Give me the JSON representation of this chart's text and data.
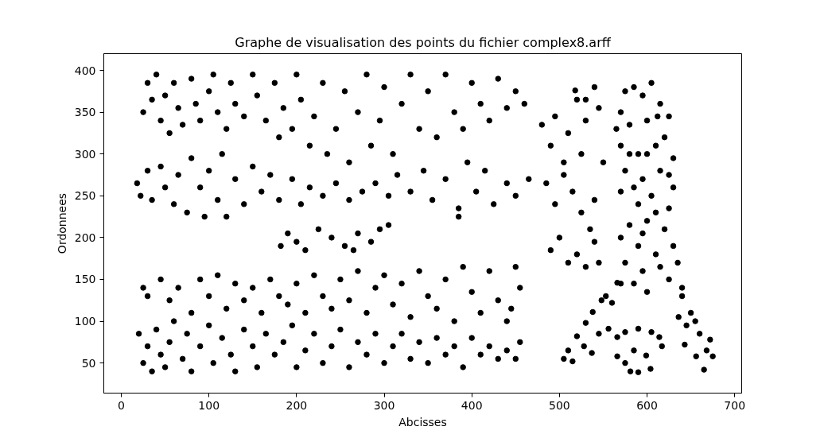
{
  "chart_data": {
    "type": "scatter",
    "title": "Graphe de visualisation des points du fichier complex8.arff",
    "xlabel": "Abcisses",
    "ylabel": "Ordonnees",
    "color": "#000000",
    "marker": "circle",
    "grid": false,
    "xlim": [
      -20,
      708
    ],
    "ylim": [
      14,
      420
    ],
    "xticks": [
      0,
      100,
      200,
      300,
      400,
      500,
      600,
      700
    ],
    "yticks": [
      50,
      100,
      150,
      200,
      250,
      300,
      350,
      400
    ],
    "x": [
      25,
      30,
      35,
      40,
      45,
      50,
      55,
      60,
      65,
      70,
      80,
      85,
      90,
      100,
      105,
      110,
      120,
      125,
      130,
      140,
      150,
      155,
      165,
      175,
      180,
      185,
      195,
      200,
      205,
      215,
      220,
      230,
      235,
      245,
      255,
      260,
      270,
      280,
      285,
      295,
      300,
      310,
      320,
      330,
      340,
      350,
      360,
      370,
      380,
      390,
      400,
      410,
      420,
      430,
      440,
      450,
      460,
      18,
      22,
      30,
      35,
      45,
      50,
      60,
      65,
      75,
      80,
      90,
      95,
      100,
      110,
      115,
      120,
      130,
      140,
      150,
      160,
      170,
      180,
      195,
      205,
      215,
      230,
      245,
      260,
      275,
      290,
      305,
      315,
      330,
      345,
      355,
      370,
      385,
      395,
      405,
      415,
      425,
      440,
      450,
      465,
      385,
      182,
      190,
      200,
      210,
      225,
      240,
      255,
      270,
      285,
      295,
      305,
      265,
      25,
      30,
      45,
      55,
      65,
      80,
      90,
      100,
      110,
      120,
      130,
      140,
      150,
      160,
      170,
      180,
      190,
      200,
      210,
      220,
      230,
      240,
      250,
      260,
      270,
      280,
      290,
      300,
      310,
      320,
      330,
      340,
      350,
      360,
      370,
      380,
      390,
      400,
      410,
      420,
      430,
      440,
      450,
      455,
      445,
      20,
      25,
      30,
      35,
      40,
      45,
      50,
      55,
      60,
      70,
      75,
      80,
      90,
      100,
      105,
      115,
      125,
      130,
      140,
      150,
      155,
      165,
      175,
      185,
      195,
      200,
      210,
      220,
      230,
      240,
      250,
      260,
      270,
      280,
      290,
      300,
      310,
      320,
      330,
      340,
      350,
      360,
      370,
      380,
      390,
      400,
      410,
      420,
      430,
      440,
      450,
      455,
      480,
      490,
      495,
      505,
      510,
      520,
      525,
      530,
      540,
      545,
      485,
      495,
      505,
      515,
      525,
      535,
      540,
      490,
      500,
      510,
      520,
      530,
      540,
      545,
      530,
      550,
      518,
      570,
      575,
      585,
      595,
      605,
      615,
      625,
      580,
      600,
      620,
      570,
      590,
      610,
      630,
      575,
      595,
      615,
      630,
      570,
      590,
      605,
      625,
      580,
      600,
      620,
      570,
      590,
      610,
      630,
      575,
      595,
      615,
      625,
      585,
      600,
      570,
      635,
      640,
      565,
      600,
      585,
      610,
      625,
      580,
      612,
      595,
      505,
      515,
      520,
      530,
      538,
      537,
      528,
      548,
      556,
      560,
      566,
      545,
      553,
      510,
      636,
      645,
      650,
      643,
      656,
      665,
      672,
      675,
      660,
      640,
      668,
      655,
      566,
      575,
      590,
      605,
      614,
      617,
      581,
      590,
      604,
      566,
      599,
      585,
      575
    ],
    "values": [
      350,
      385,
      365,
      395,
      340,
      370,
      325,
      385,
      355,
      335,
      390,
      360,
      340,
      375,
      395,
      350,
      330,
      385,
      360,
      345,
      395,
      370,
      340,
      385,
      320,
      355,
      330,
      395,
      365,
      310,
      345,
      385,
      300,
      330,
      375,
      290,
      350,
      395,
      310,
      340,
      380,
      300,
      360,
      395,
      330,
      375,
      320,
      395,
      350,
      330,
      385,
      360,
      340,
      390,
      355,
      375,
      360,
      265,
      250,
      280,
      245,
      285,
      260,
      240,
      275,
      230,
      295,
      260,
      225,
      280,
      245,
      300,
      225,
      270,
      240,
      285,
      255,
      275,
      245,
      270,
      240,
      260,
      250,
      265,
      245,
      255,
      265,
      250,
      275,
      255,
      280,
      245,
      270,
      235,
      290,
      255,
      280,
      240,
      265,
      250,
      270,
      225,
      190,
      205,
      195,
      185,
      210,
      200,
      190,
      205,
      195,
      210,
      215,
      185,
      140,
      130,
      150,
      125,
      140,
      110,
      150,
      130,
      155,
      115,
      145,
      125,
      140,
      110,
      150,
      130,
      120,
      145,
      110,
      155,
      130,
      115,
      150,
      125,
      160,
      110,
      140,
      155,
      120,
      145,
      105,
      160,
      130,
      115,
      150,
      100,
      165,
      135,
      110,
      160,
      125,
      100,
      165,
      140,
      115,
      85,
      50,
      70,
      40,
      90,
      60,
      45,
      75,
      100,
      55,
      85,
      40,
      70,
      95,
      50,
      80,
      60,
      40,
      90,
      70,
      45,
      85,
      60,
      75,
      95,
      45,
      65,
      85,
      50,
      70,
      90,
      45,
      75,
      60,
      85,
      50,
      70,
      85,
      55,
      75,
      50,
      80,
      60,
      70,
      45,
      80,
      60,
      70,
      55,
      65,
      55,
      75,
      335,
      310,
      345,
      290,
      325,
      365,
      300,
      340,
      380,
      355,
      265,
      240,
      275,
      255,
      230,
      210,
      245,
      185,
      200,
      170,
      180,
      165,
      195,
      170,
      365,
      290,
      376,
      350,
      375,
      380,
      370,
      385,
      360,
      345,
      335,
      340,
      320,
      310,
      300,
      310,
      295,
      280,
      270,
      280,
      260,
      255,
      240,
      250,
      235,
      215,
      220,
      210,
      200,
      190,
      180,
      190,
      170,
      160,
      165,
      150,
      145,
      135,
      145,
      170,
      140,
      330,
      300,
      260,
      230,
      275,
      300,
      345,
      205,
      55,
      52,
      82,
      98,
      111,
      62,
      70,
      125,
      91,
      122,
      146,
      85,
      130,
      65,
      105,
      95,
      110,
      72,
      58,
      42,
      78,
      58,
      85,
      130,
      65,
      100,
      81,
      87,
      91,
      87,
      81,
      70,
      40,
      39,
      43,
      58,
      59,
      65,
      50
    ]
  }
}
